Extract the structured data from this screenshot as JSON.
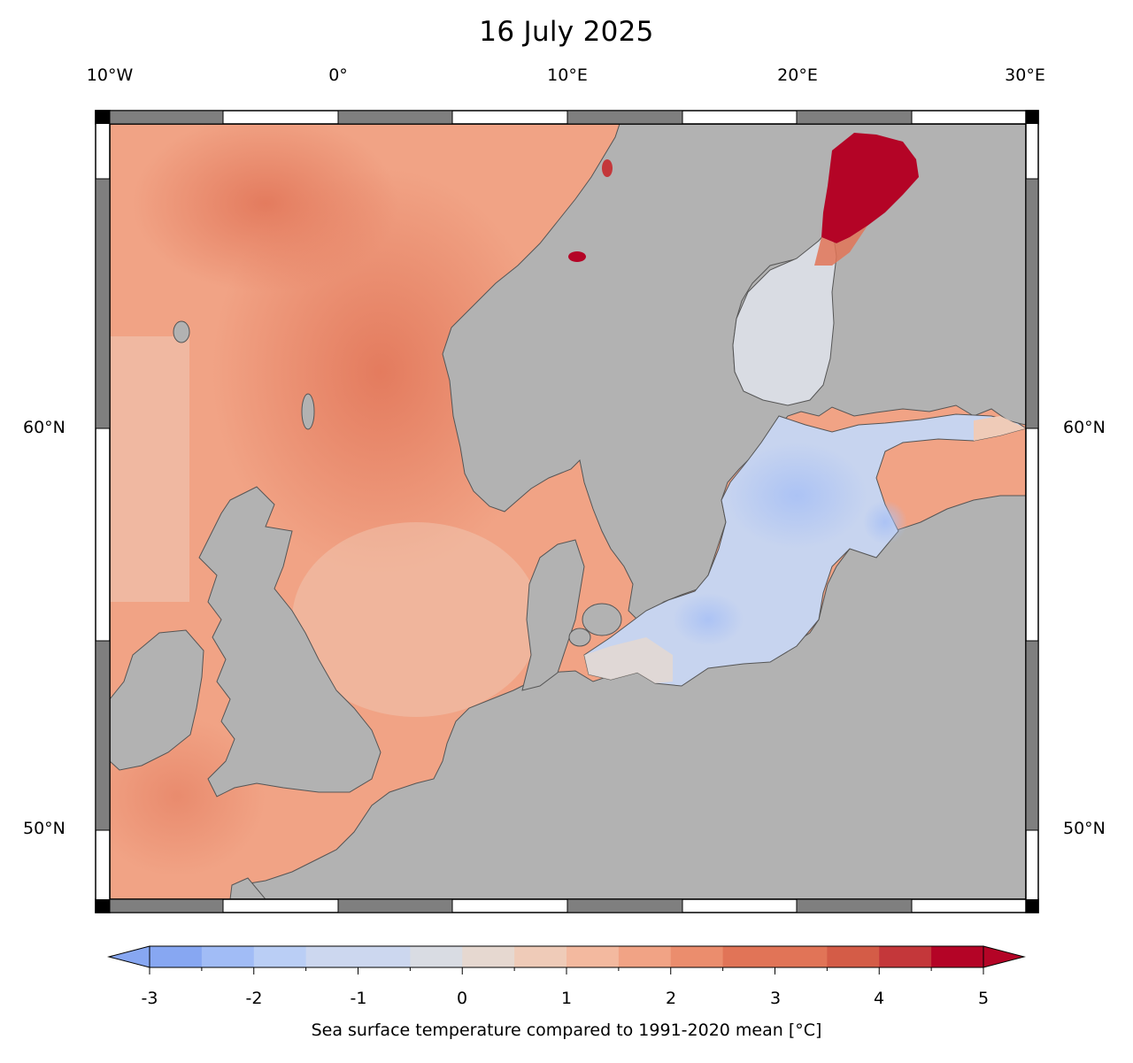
{
  "title": "16 July 2025",
  "lon_labels": [
    "10°W",
    "0°",
    "10°E",
    "20°E",
    "30°E"
  ],
  "lat_labels": [
    "60°N",
    "50°N"
  ],
  "colorbar": {
    "label": "Sea surface temperature compared to 1991-2020 mean [°C]",
    "ticks": [
      "-3",
      "-2",
      "-1",
      "0",
      "1",
      "2",
      "3",
      "4",
      "5"
    ],
    "extend": "both",
    "colors": [
      "#87a7f2",
      "#a1bcf6",
      "#bacef5",
      "#ccd7ef",
      "#d9dce3",
      "#e6d8d0",
      "#efcbb8",
      "#f3b99f",
      "#f1a385",
      "#eb8d6d",
      "#e17457",
      "#d45c47",
      "#c4373a",
      "#b40426"
    ]
  },
  "colors": {
    "land": "#b2b2b2",
    "sea_warm": "#f1a385",
    "sea_hot": "#b40426",
    "sea_cool": "#c7d4ef",
    "frame_dark": "#7f7f7f"
  }
}
